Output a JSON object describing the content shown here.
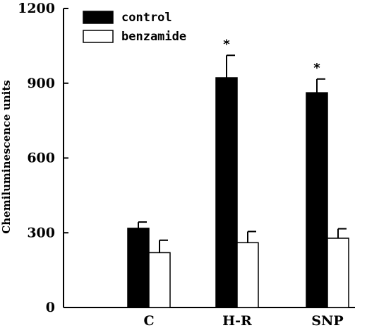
{
  "chart_data": {
    "type": "bar",
    "ylabel": "Chemiluminescence units",
    "xlabel": "",
    "ylim": [
      0,
      1200
    ],
    "yticks": [
      0,
      300,
      600,
      900,
      1200
    ],
    "categories": [
      "C",
      "H-R",
      "SNP"
    ],
    "series": [
      {
        "name": "control",
        "values": [
          318,
          922,
          862
        ],
        "errors": [
          25,
          90,
          55
        ],
        "fill": "#000000"
      },
      {
        "name": "benzamide",
        "values": [
          220,
          260,
          278
        ],
        "errors": [
          50,
          45,
          38
        ],
        "fill": "#ffffff"
      }
    ],
    "significance": [
      {
        "category": "H-R",
        "series": "control",
        "mark": "*"
      },
      {
        "category": "SNP",
        "series": "control",
        "mark": "*"
      }
    ],
    "legend_position": "top-left",
    "grid": false
  }
}
